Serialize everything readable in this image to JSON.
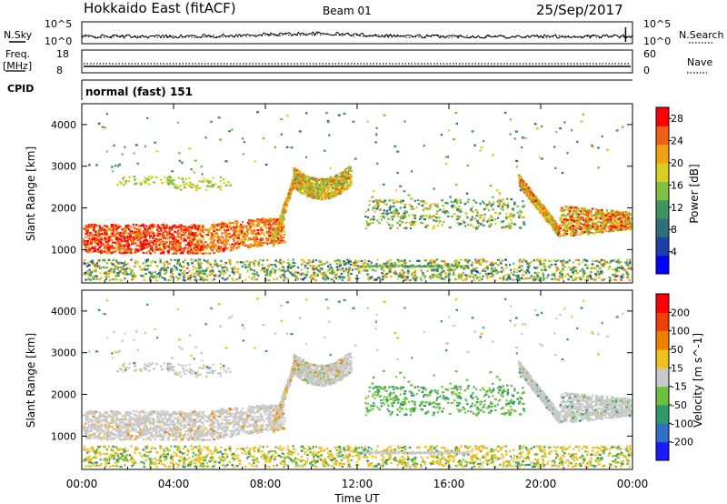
{
  "header": {
    "station": "Hokkaido East (fitACF)",
    "beam": "Beam 01",
    "date": "25/Sep/2017"
  },
  "side_labels": {
    "nsky": "N.Sky",
    "nsearch": "N.Search",
    "freq_line1": "Freq.",
    "freq_line2": "[MHz]",
    "nave": "Nave",
    "cpid": "CPID"
  },
  "strip_ticks": {
    "nsky_top": "10^5",
    "nsky_bottom": "10^0",
    "nsearch_top": "10^5",
    "nsearch_bottom": "10^0",
    "freq_top": "18",
    "freq_bottom": "8",
    "nave_top": "60",
    "nave_bottom": "0"
  },
  "cpid_text": "normal (fast) 151",
  "chart_data": [
    {
      "type": "heatmap",
      "name": "power",
      "ylabel": "Slant Range [km]",
      "yticks": [
        "1000",
        "2000",
        "3000",
        "4000"
      ],
      "ylim": [
        200,
        4500
      ],
      "xlim_hours": [
        0,
        24
      ],
      "colorbar": {
        "label": "Power [dB]",
        "ticks": [
          "4",
          "8",
          "12",
          "16",
          "20",
          "24",
          "28"
        ],
        "range": [
          0,
          30
        ],
        "colors": [
          "#0000ff",
          "#1e3fa8",
          "#2e6f7a",
          "#3f9460",
          "#7fc040",
          "#d8d020",
          "#f0a010",
          "#f06010",
          "#ff0000"
        ]
      }
    },
    {
      "type": "heatmap",
      "name": "velocity",
      "ylabel": "Slant Range [km]",
      "yticks": [
        "1000",
        "2000",
        "3000",
        "4000"
      ],
      "ylim": [
        200,
        4500
      ],
      "xlim_hours": [
        0,
        24
      ],
      "colorbar": {
        "label": "Velocity [m s^-1]",
        "ticks": [
          "200",
          "100",
          "50",
          "15",
          "-15",
          "-50",
          "-100",
          "-200"
        ],
        "colors": [
          "#1a1aff",
          "#2f6fc8",
          "#2e9a6a",
          "#70c040",
          "#c8c8c8",
          "#f0c020",
          "#f08000",
          "#f04000",
          "#ff0000"
        ]
      }
    }
  ],
  "xaxis": {
    "ticks": [
      "00:00",
      "04:00",
      "08:00",
      "12:00",
      "16:00",
      "20:00",
      "00:00"
    ],
    "label": "Time UT"
  }
}
